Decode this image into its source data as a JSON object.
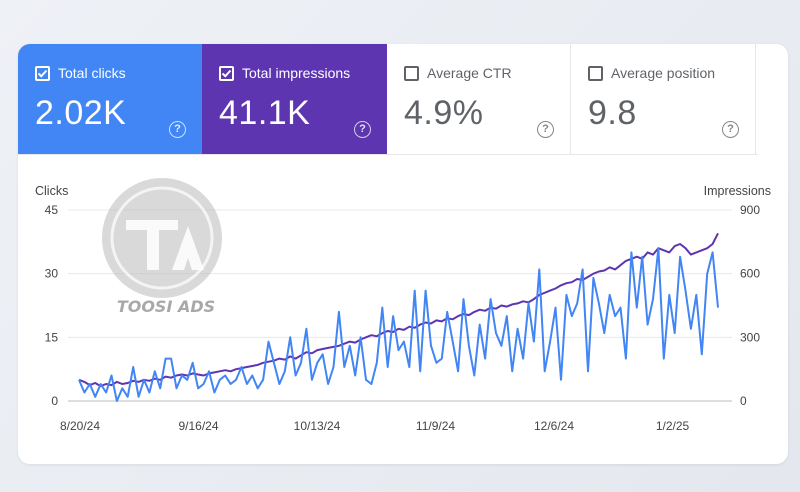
{
  "cards": [
    {
      "label": "Total clicks",
      "value": "2.02K",
      "checked": true,
      "color": "#4285f4"
    },
    {
      "label": "Total impressions",
      "value": "41.1K",
      "checked": true,
      "color": "#5e35b1"
    },
    {
      "label": "Average CTR",
      "value": "4.9%",
      "checked": false,
      "color": "#ffffff"
    },
    {
      "label": "Average position",
      "value": "9.8",
      "checked": false,
      "color": "#ffffff"
    }
  ],
  "help_glyph": "?",
  "watermark": {
    "text": "TOOSI ADS"
  },
  "chart_data": {
    "type": "line",
    "x_ticks": [
      "8/20/24",
      "9/16/24",
      "10/13/24",
      "11/9/24",
      "12/6/24",
      "1/2/25"
    ],
    "y_left": {
      "label": "Clicks",
      "ticks": [
        "0",
        "15",
        "30",
        "45"
      ],
      "ylim": [
        0,
        45
      ]
    },
    "y_right": {
      "label": "Impressions",
      "ticks": [
        "0",
        "300",
        "600",
        "900"
      ],
      "ylim": [
        0,
        900
      ]
    },
    "grid": true,
    "series": [
      {
        "name": "Clicks",
        "axis": "left",
        "color": "#4285f4",
        "values": [
          5,
          2,
          4,
          1,
          4,
          2,
          6,
          0,
          3,
          1,
          8,
          1,
          5,
          2,
          7,
          3,
          10,
          10,
          3,
          6,
          5,
          9,
          3,
          4,
          7,
          2,
          5,
          6,
          4,
          5,
          8,
          4,
          6,
          3,
          5,
          14,
          9,
          4,
          7,
          15,
          6,
          9,
          17,
          5,
          9,
          11,
          4,
          8,
          21,
          8,
          13,
          6,
          15,
          5,
          4,
          9,
          22,
          8,
          20,
          12,
          14,
          8,
          26,
          7,
          26,
          13,
          9,
          10,
          21,
          14,
          7,
          24,
          13,
          6,
          18,
          10,
          24,
          16,
          13,
          20,
          7,
          17,
          10,
          23,
          14,
          31,
          7,
          14,
          22,
          5,
          25,
          20,
          23,
          31,
          7,
          29,
          23,
          16,
          25,
          20,
          22,
          10,
          35,
          22,
          34,
          18,
          24,
          36,
          10,
          25,
          16,
          34,
          26,
          17,
          25,
          11,
          30,
          35,
          22
        ]
      },
      {
        "name": "Impressions",
        "axis": "right",
        "color": "#5e35b1",
        "values": [
          100,
          90,
          75,
          85,
          70,
          80,
          75,
          90,
          80,
          85,
          95,
          90,
          100,
          95,
          105,
          100,
          115,
          110,
          120,
          125,
          120,
          130,
          125,
          120,
          130,
          135,
          140,
          145,
          140,
          150,
          155,
          160,
          165,
          170,
          180,
          185,
          190,
          200,
          195,
          210,
          200,
          215,
          230,
          225,
          240,
          245,
          250,
          255,
          260,
          270,
          280,
          275,
          290,
          300,
          310,
          305,
          320,
          330,
          325,
          340,
          335,
          350,
          345,
          360,
          370,
          365,
          380,
          375,
          390,
          385,
          400,
          410,
          405,
          420,
          430,
          425,
          440,
          435,
          450,
          445,
          455,
          460,
          470,
          465,
          480,
          500,
          510,
          520,
          530,
          545,
          555,
          560,
          575,
          570,
          585,
          600,
          610,
          615,
          630,
          620,
          640,
          660,
          670,
          680,
          670,
          700,
          690,
          720,
          710,
          700,
          730,
          740,
          720,
          690,
          700,
          710,
          720,
          740,
          790
        ]
      }
    ]
  }
}
